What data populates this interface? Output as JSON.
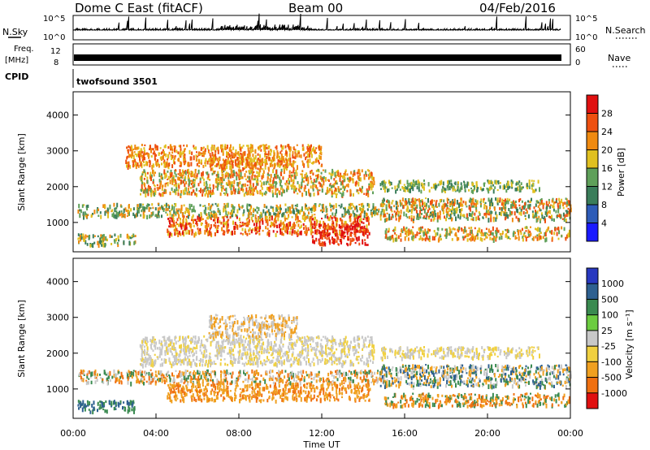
{
  "header": {
    "station": "Dome C East (fitACF)",
    "beam": "Beam 00",
    "date": "04/Feb/2016"
  },
  "top_panels": {
    "nsky_label": "N.Sky",
    "nsky_ticks": [
      "10^5",
      "10^0"
    ],
    "nsearch_ticks": [
      "10^5",
      "10^0"
    ],
    "nsearch_label": "N.Search",
    "freq_label": "Freq.",
    "freq_unit": "[MHz]",
    "freq_ticks": [
      "12",
      "8"
    ],
    "nave_ticks": [
      "60",
      "0"
    ],
    "nave_label": "Nave",
    "cpid_label": "CPID",
    "cpid_text": "twofsound 3501"
  },
  "chart_data": [
    {
      "type": "heatmap",
      "name": "power",
      "ylabel": "Slant Range [km]",
      "ylim": [
        180,
        4650
      ],
      "yticks": [
        1000,
        2000,
        3000,
        4000
      ],
      "xlim": [
        0,
        24
      ],
      "colorbar": {
        "label": "Power [dB]",
        "ticks": [
          "4",
          "8",
          "12",
          "16",
          "20",
          "24",
          "28"
        ],
        "range": [
          0,
          32
        ],
        "colors": [
          "#1a1aff",
          "#2e5cb8",
          "#3a7d5a",
          "#5fa05a",
          "#e0c020",
          "#f08a10",
          "#ee5010",
          "#e01010"
        ]
      },
      "scatter_bands": [
        {
          "x0": 0.2,
          "x1": 15.0,
          "y0": 1200,
          "y1": 1550,
          "levels": [
            8,
            12,
            16,
            20
          ]
        },
        {
          "x0": 3.2,
          "x1": 14.5,
          "y0": 1800,
          "y1": 2500,
          "levels": [
            12,
            16,
            20,
            24
          ]
        },
        {
          "x0": 6.5,
          "x1": 10.8,
          "y0": 2500,
          "y1": 2850,
          "levels": [
            16,
            20,
            24
          ]
        },
        {
          "x0": 4.5,
          "x1": 14.3,
          "y0": 700,
          "y1": 1200,
          "levels": [
            16,
            20,
            24,
            28
          ]
        },
        {
          "x0": 11.5,
          "x1": 14.2,
          "y0": 400,
          "y1": 1000,
          "levels": [
            24,
            28
          ]
        },
        {
          "x0": 0.2,
          "x1": 3.0,
          "y0": 400,
          "y1": 700,
          "levels": [
            8,
            12,
            16,
            20
          ]
        },
        {
          "x0": 14.8,
          "x1": 24.0,
          "y0": 1100,
          "y1": 1700,
          "levels": [
            8,
            12,
            16,
            20,
            24
          ]
        },
        {
          "x0": 15.0,
          "x1": 24.0,
          "y0": 550,
          "y1": 900,
          "levels": [
            12,
            16,
            20,
            24
          ]
        },
        {
          "x0": 14.8,
          "x1": 22.5,
          "y0": 1900,
          "y1": 2200,
          "levels": [
            8,
            12,
            16
          ]
        },
        {
          "x0": 2.5,
          "x1": 12.0,
          "y0": 2600,
          "y1": 3200,
          "levels": [
            16,
            20,
            24
          ]
        }
      ]
    },
    {
      "type": "heatmap",
      "name": "velocity",
      "ylabel": "Slant Range [km]",
      "xlabel": "Time UT",
      "ylim": [
        180,
        4650
      ],
      "yticks": [
        1000,
        2000,
        3000,
        4000
      ],
      "xlim": [
        0,
        24
      ],
      "xticks": [
        "00:00",
        "04:00",
        "08:00",
        "12:00",
        "16:00",
        "20:00",
        "00:00"
      ],
      "colorbar": {
        "label": "Velocity [m s⁻¹]",
        "ticks": [
          "1000",
          "500",
          "100",
          "25",
          "-25",
          "-100",
          "-500",
          "-1000"
        ],
        "colors": [
          "#2838c0",
          "#2e6090",
          "#3a8a50",
          "#6ccc40",
          "#c8c8c8",
          "#f0d040",
          "#f0a020",
          "#f07010",
          "#e01010"
        ]
      },
      "scatter_bands": [
        {
          "x0": 0.2,
          "x1": 15.0,
          "y0": 1200,
          "y1": 1550,
          "levels": [
            "-100",
            "-500",
            "100",
            "25"
          ]
        },
        {
          "x0": 3.2,
          "x1": 14.5,
          "y0": 1700,
          "y1": 2500,
          "levels": [
            "25",
            "-25",
            "25"
          ]
        },
        {
          "x0": 4.5,
          "x1": 14.3,
          "y0": 700,
          "y1": 1200,
          "levels": [
            "-100",
            "-500",
            "-100"
          ]
        },
        {
          "x0": 0.2,
          "x1": 3.0,
          "y0": 400,
          "y1": 700,
          "levels": [
            "100",
            "500"
          ]
        },
        {
          "x0": 14.8,
          "x1": 24.0,
          "y0": 1100,
          "y1": 1700,
          "levels": [
            "100",
            "500",
            "25",
            "-100"
          ]
        },
        {
          "x0": 15.0,
          "x1": 24.0,
          "y0": 550,
          "y1": 900,
          "levels": [
            "-100",
            "-500",
            "100"
          ]
        },
        {
          "x0": 14.8,
          "x1": 22.5,
          "y0": 1900,
          "y1": 2200,
          "levels": [
            "25",
            "-25"
          ]
        },
        {
          "x0": 6.5,
          "x1": 10.8,
          "y0": 2500,
          "y1": 3100,
          "levels": [
            "-100",
            "25"
          ]
        }
      ]
    }
  ]
}
